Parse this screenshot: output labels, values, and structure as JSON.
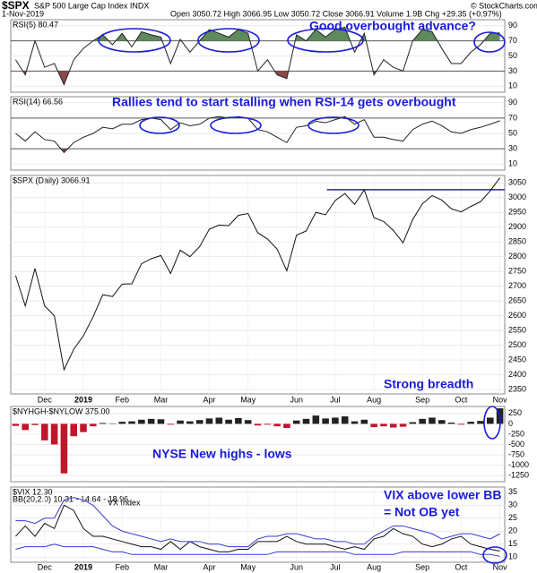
{
  "header": {
    "symbol": "$SPX",
    "name": "S&P 500 Large Cap Index INDX",
    "date": "1-Nov-2019",
    "quote": "Open 3050.72 High 3066.95 Low 3050.72 Close 3066.91 Volume 1.9B Chg +29.35 (+0.97%)",
    "credit": "© StockCharts.com"
  },
  "chart_data": [
    {
      "type": "line",
      "title": "RSI(5) 80.47",
      "annotations": [
        "Good overbought  advance?"
      ],
      "ylim": [
        2,
        98
      ],
      "yticks": [
        10,
        30,
        50,
        70,
        90
      ],
      "overbought": 70,
      "oversold": 30,
      "fill_above_color": "#5e8a5e",
      "fill_below_color": "#8a4a4a",
      "series": [
        {
          "color": "#222222",
          "values": [
            45,
            25,
            70,
            35,
            40,
            12,
            45,
            60,
            70,
            78,
            65,
            80,
            62,
            82,
            78,
            75,
            40,
            72,
            55,
            70,
            85,
            80,
            75,
            85,
            80,
            30,
            45,
            25,
            20,
            78,
            70,
            85,
            75,
            85,
            88,
            55,
            80,
            25,
            45,
            35,
            30,
            70,
            85,
            82,
            60,
            40,
            40,
            55,
            65,
            80,
            80.47
          ]
        }
      ]
    },
    {
      "type": "line",
      "title": "RSI(14) 66.56",
      "annotations": [
        "Rallies tend to start stalling when RSI-14 gets overbought"
      ],
      "ylim": [
        2,
        98
      ],
      "yticks": [
        10,
        30,
        50,
        70,
        90
      ],
      "overbought": 70,
      "oversold": 30,
      "fill_above_color": "#5e8a5e",
      "fill_below_color": "#8a4a4a",
      "series": [
        {
          "color": "#222222",
          "values": [
            50,
            40,
            52,
            42,
            40,
            25,
            38,
            45,
            50,
            58,
            56,
            62,
            62,
            68,
            70,
            68,
            55,
            64,
            60,
            62,
            70,
            72,
            70,
            72,
            70,
            55,
            52,
            45,
            38,
            58,
            60,
            66,
            64,
            68,
            72,
            62,
            68,
            45,
            45,
            42,
            40,
            55,
            62,
            66,
            60,
            52,
            50,
            55,
            58,
            62,
            66.56
          ]
        }
      ]
    },
    {
      "type": "line",
      "title": "$SPX (Daily) 3066.91",
      "annotations": [
        "Strong breadth"
      ],
      "ylim": [
        2335,
        3075
      ],
      "yticks": [
        2350,
        2400,
        2450,
        2500,
        2550,
        2600,
        2650,
        2700,
        2750,
        2800,
        2850,
        2900,
        2950,
        3000,
        3050
      ],
      "hline": 3027,
      "hline_color": "#1a1adb",
      "categories": [
        null,
        null,
        null,
        "Dec",
        null,
        null,
        null,
        "2019",
        null,
        null,
        null,
        "Feb",
        null,
        null,
        null,
        "Mar",
        null,
        null,
        null,
        null,
        "Apr",
        null,
        null,
        null,
        "May",
        null,
        null,
        null,
        null,
        "Jun",
        null,
        null,
        null,
        "Jul",
        null,
        null,
        null,
        "Aug",
        null,
        null,
        null,
        null,
        "Sep",
        null,
        null,
        null,
        "Oct",
        null,
        null,
        null,
        "Nov"
      ],
      "series": [
        {
          "color": "#111111",
          "values": [
            2736,
            2633,
            2760,
            2633,
            2600,
            2417,
            2486,
            2532,
            2596,
            2671,
            2665,
            2707,
            2708,
            2776,
            2793,
            2804,
            2743,
            2822,
            2800,
            2834,
            2893,
            2907,
            2905,
            2940,
            2946,
            2881,
            2860,
            2826,
            2752,
            2873,
            2887,
            2950,
            2942,
            2990,
            3014,
            2977,
            3026,
            2932,
            2919,
            2889,
            2847,
            2926,
            2979,
            3007,
            2992,
            2962,
            2952,
            2970,
            2986,
            3023,
            3066.91
          ]
        }
      ]
    },
    {
      "type": "bar",
      "title": "$NYHGH-$NYLOW 375.00",
      "annotations": [
        "NYSE New highs - lows"
      ],
      "ylim": [
        -1400,
        420
      ],
      "yticks": [
        250,
        0,
        -250,
        -500,
        -750,
        -1000,
        -1250
      ],
      "color": "#222222",
      "negative_color": "#c0162c",
      "values": [
        -50,
        -150,
        -30,
        -400,
        -500,
        -1200,
        -300,
        -200,
        -60,
        20,
        10,
        50,
        60,
        100,
        120,
        110,
        -20,
        80,
        60,
        90,
        130,
        150,
        100,
        140,
        90,
        -40,
        -20,
        -60,
        -100,
        80,
        120,
        200,
        130,
        150,
        180,
        60,
        100,
        -80,
        -60,
        -90,
        -70,
        40,
        120,
        150,
        90,
        30,
        -20,
        50,
        70,
        150,
        375
      ]
    },
    {
      "type": "line",
      "title": "$VIX 12.30",
      "subtitle": "BB(20,2.0) 10.31 - 14.64 - 18.96",
      "label": "VX Index",
      "annotations": [
        "VIX above lower BB",
        "= Not OB yet"
      ],
      "ylim": [
        8,
        37
      ],
      "yticks": [
        10,
        15,
        20,
        25,
        30,
        35
      ],
      "categories": [
        null,
        null,
        null,
        "Dec",
        null,
        null,
        null,
        "2019",
        null,
        null,
        null,
        "Feb",
        null,
        null,
        null,
        "Mar",
        null,
        null,
        null,
        null,
        "Apr",
        null,
        null,
        null,
        "May",
        null,
        null,
        null,
        null,
        "Jun",
        null,
        null,
        null,
        "Jul",
        null,
        null,
        null,
        "Aug",
        null,
        null,
        null,
        null,
        "Sep",
        null,
        null,
        null,
        "Oct",
        null,
        null,
        null,
        "Nov"
      ],
      "series": [
        {
          "color": "#111111",
          "values": [
            18,
            22,
            18,
            23,
            21,
            30,
            28,
            21,
            18,
            18,
            17,
            16,
            15,
            14,
            14,
            13,
            16,
            13,
            16,
            14,
            13,
            12,
            12,
            13,
            13,
            16,
            16,
            16,
            18,
            16,
            15,
            15,
            15,
            14,
            13,
            14,
            13,
            17,
            18,
            21,
            19,
            18,
            15,
            14,
            15,
            17,
            18,
            15,
            14,
            13,
            12.3
          ]
        },
        {
          "color": "#3a3ad0",
          "values": [
            24,
            24,
            23,
            25,
            25,
            32,
            33,
            32,
            30,
            26,
            22,
            20,
            19,
            18,
            17,
            16,
            17,
            16,
            16,
            16,
            15,
            15,
            14,
            14,
            14,
            17,
            18,
            18,
            19,
            19,
            18,
            17,
            17,
            16,
            16,
            15,
            15,
            18,
            20,
            22,
            22,
            21,
            20,
            19,
            17,
            18,
            19,
            19,
            18,
            17,
            18.96
          ]
        },
        {
          "color": "#3a3ad0",
          "values": [
            13,
            14,
            14,
            14,
            15,
            14,
            14,
            14,
            14,
            13,
            12,
            12,
            11,
            11,
            11,
            11,
            11,
            11,
            11,
            11,
            11,
            11,
            11,
            11,
            11,
            11,
            11,
            12,
            12,
            12,
            12,
            12,
            12,
            12,
            12,
            11,
            11,
            11,
            11,
            11,
            12,
            12,
            12,
            12,
            12,
            12,
            12,
            12,
            11,
            11,
            10.31
          ]
        }
      ]
    }
  ]
}
